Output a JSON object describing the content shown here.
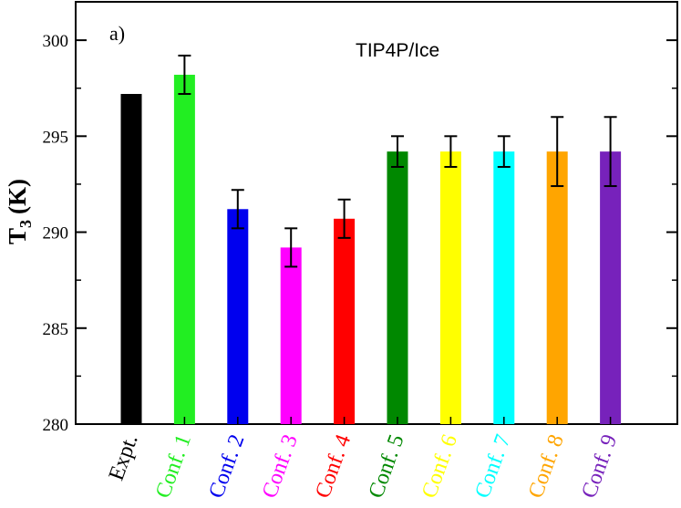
{
  "chart_data": {
    "type": "bar",
    "title": "TIP4P/Ice",
    "panel_label": "a)",
    "ylabel_main": "T",
    "ylabel_sub": "3",
    "ylabel_unit": "(K)",
    "ylim": [
      280,
      302
    ],
    "yticks": [
      280,
      285,
      290,
      295,
      300
    ],
    "categories": [
      "Expt.",
      "Conf. 1",
      "Conf. 2",
      "Conf. 3",
      "Conf. 4",
      "Conf. 5",
      "Conf. 6",
      "Conf. 7",
      "Conf. 8",
      "Conf. 9"
    ],
    "values": [
      297.2,
      298.2,
      291.2,
      289.2,
      290.7,
      294.2,
      294.2,
      294.2,
      294.2,
      294.2
    ],
    "errors": [
      null,
      1.0,
      1.0,
      1.0,
      1.0,
      0.8,
      0.8,
      0.8,
      1.8,
      1.8
    ],
    "colors": [
      "#000000",
      "#22ee22",
      "#0000ee",
      "#ff00ff",
      "#ff0000",
      "#008800",
      "#ffff00",
      "#00ffff",
      "#ffa500",
      "#7722bb"
    ],
    "grid": false
  }
}
